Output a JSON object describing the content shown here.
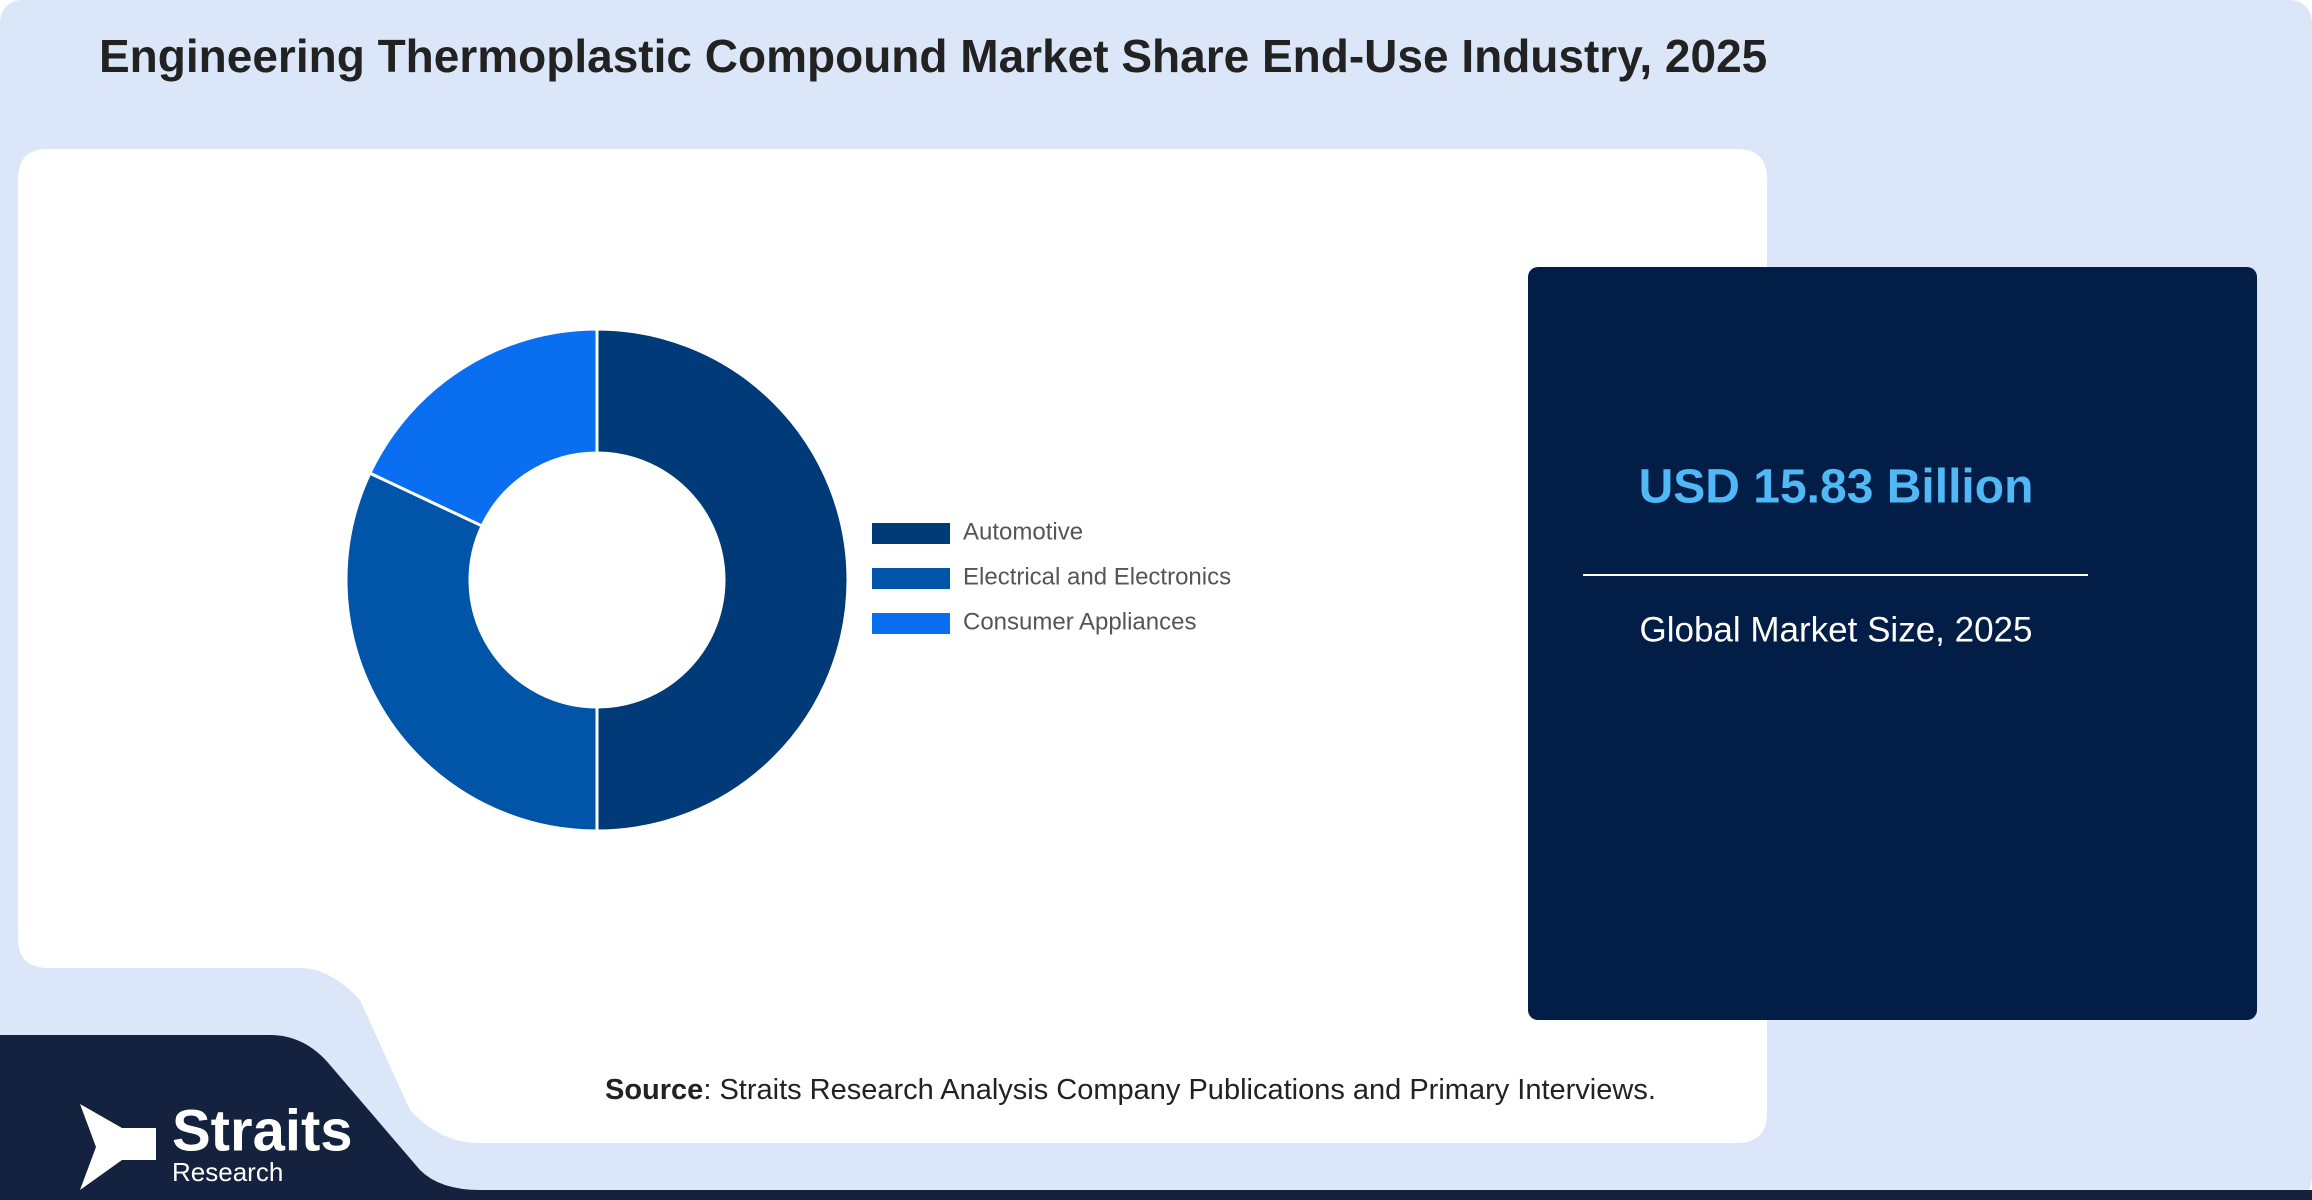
{
  "chart_data": {
    "type": "pie",
    "title": "Engineering Thermoplastic Compound Market Share End-Use Industry, 2025",
    "categories": [
      "Automotive",
      "Electrical and Electronics",
      "Consumer Appliances"
    ],
    "values": [
      50,
      32,
      18
    ],
    "colors": [
      "#003a78",
      "#0055a8",
      "#0a6ef0"
    ]
  },
  "summary": {
    "value": "USD 15.83 Billion",
    "caption": "Global Market Size, 2025"
  },
  "source": {
    "label": "Source",
    "text": ": Straits Research Analysis Company Publications and Primary Interviews."
  },
  "logo": {
    "name": "Straits",
    "sub": "Research"
  }
}
